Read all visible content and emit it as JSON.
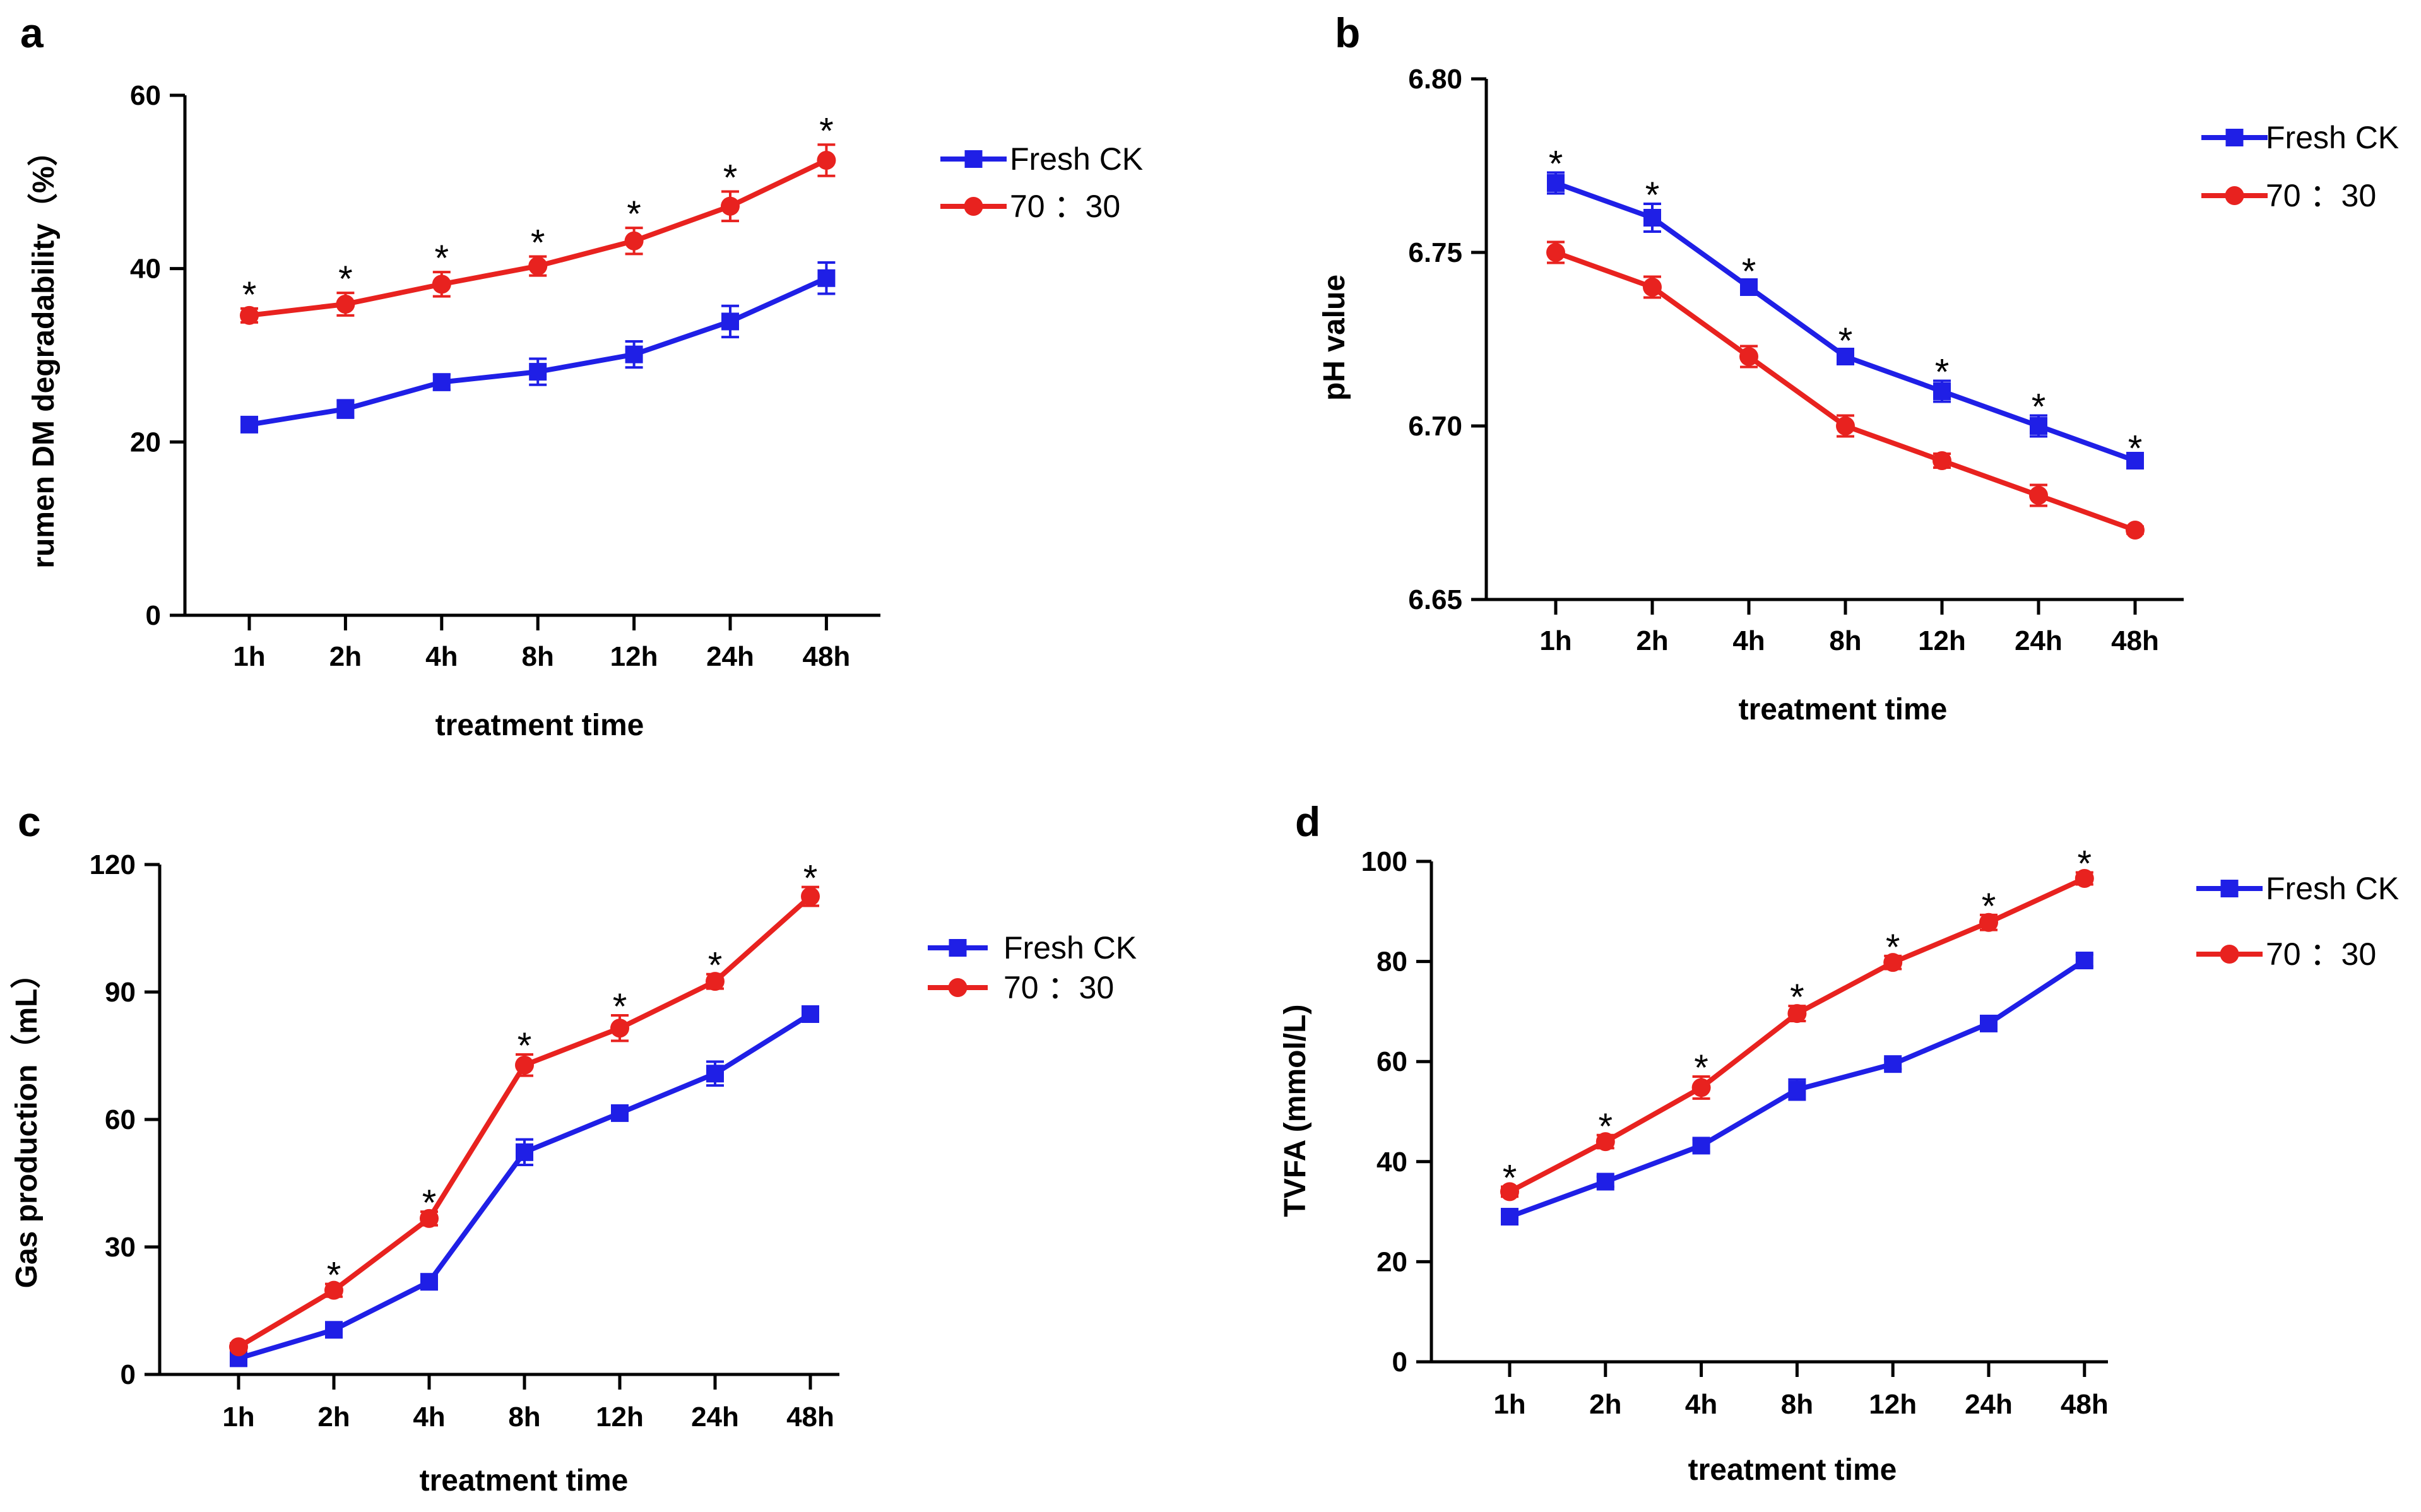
{
  "colors": {
    "fresh_ck": "#1f1fe6",
    "ratio": "#e8221f",
    "axis": "#000000"
  },
  "chart_data": [
    {
      "panel": "a",
      "type": "line",
      "title": "",
      "xlabel": "treatment time",
      "ylabel": "rumen DM degradability（%）",
      "categories": [
        "1h",
        "2h",
        "4h",
        "8h",
        "12h",
        "24h",
        "48h"
      ],
      "ylim": [
        0,
        60
      ],
      "yticks": [
        "0",
        "20",
        "40",
        "60"
      ],
      "legend_position": "right",
      "series": [
        {
          "name": "Fresh CK",
          "marker": "square",
          "color_key": "fresh_ck",
          "values": [
            22.0,
            23.8,
            26.9,
            28.1,
            30.1,
            33.9,
            38.9
          ],
          "errors": [
            0.6,
            1.0,
            0.9,
            1.5,
            1.5,
            1.8,
            1.8
          ]
        },
        {
          "name": "70 ：30",
          "marker": "circle",
          "color_key": "ratio",
          "values": [
            34.6,
            35.9,
            38.2,
            40.3,
            43.2,
            47.2,
            52.5
          ],
          "errors": [
            0.8,
            1.3,
            1.4,
            1.1,
            1.5,
            1.7,
            1.8
          ]
        }
      ],
      "significance": [
        "*",
        "*",
        "*",
        "*",
        "*",
        "*",
        "*"
      ]
    },
    {
      "panel": "b",
      "type": "line",
      "title": "",
      "xlabel": "treatment time",
      "ylabel": "pH value",
      "categories": [
        "1h",
        "2h",
        "4h",
        "8h",
        "12h",
        "24h",
        "48h"
      ],
      "ylim": [
        6.65,
        6.8
      ],
      "yticks": [
        "6.65",
        "6.70",
        "6.75",
        "6.80"
      ],
      "legend_position": "right",
      "series": [
        {
          "name": "Fresh CK",
          "marker": "square",
          "color_key": "fresh_ck",
          "values": [
            6.77,
            6.76,
            6.74,
            6.72,
            6.71,
            6.7,
            6.69
          ],
          "errors": [
            0.003,
            0.004,
            0.002,
            0.002,
            0.003,
            0.003,
            0.001
          ]
        },
        {
          "name": "70 ：30",
          "marker": "circle",
          "color_key": "ratio",
          "values": [
            6.75,
            6.74,
            6.72,
            6.7,
            6.69,
            6.68,
            6.67
          ],
          "errors": [
            0.003,
            0.003,
            0.003,
            0.003,
            0.002,
            0.003,
            0.001
          ]
        }
      ],
      "significance": [
        "*",
        "*",
        "*",
        "*",
        "*",
        "*",
        "*"
      ]
    },
    {
      "panel": "c",
      "type": "line",
      "title": "",
      "xlabel": "treatment time",
      "ylabel": "Gas production（mL）",
      "categories": [
        "1h",
        "2h",
        "4h",
        "8h",
        "12h",
        "24h",
        "48h"
      ],
      "ylim": [
        0,
        120
      ],
      "yticks": [
        "0",
        "30",
        "60",
        "90",
        "120"
      ],
      "legend_position": "right",
      "series": [
        {
          "name": "Fresh CK",
          "marker": "square",
          "color_key": "fresh_ck",
          "values": [
            3.8,
            10.5,
            21.8,
            52.3,
            61.5,
            70.8,
            84.8
          ],
          "errors": [
            0.6,
            1.2,
            1.5,
            3.0,
            1.7,
            2.8,
            1.6
          ]
        },
        {
          "name": "70 ：30",
          "marker": "circle",
          "color_key": "ratio",
          "values": [
            6.5,
            19.8,
            36.7,
            72.8,
            81.5,
            92.5,
            112.5
          ],
          "errors": [
            0.8,
            1.5,
            1.6,
            2.5,
            3.0,
            1.7,
            2.2
          ]
        }
      ],
      "significance": [
        "",
        "*",
        "*",
        "*",
        "*",
        "*",
        "*"
      ]
    },
    {
      "panel": "d",
      "type": "line",
      "title": "",
      "xlabel": "treatment time",
      "ylabel": "TVFA (mmol/L)",
      "categories": [
        "1h",
        "2h",
        "4h",
        "8h",
        "12h",
        "24h",
        "48h"
      ],
      "ylim": [
        0,
        100
      ],
      "yticks": [
        "0",
        "20",
        "40",
        "60",
        "80",
        "100"
      ],
      "legend_position": "right",
      "series": [
        {
          "name": "Fresh CK",
          "marker": "square",
          "color_key": "fresh_ck",
          "values": [
            29.0,
            36.0,
            43.2,
            54.4,
            59.5,
            67.6,
            80.2
          ],
          "errors": [
            1.0,
            1.0,
            1.2,
            2.0,
            1.0,
            1.3,
            1.2
          ]
        },
        {
          "name": "70 ：30",
          "marker": "circle",
          "color_key": "ratio",
          "values": [
            34.0,
            44.0,
            54.8,
            69.6,
            79.8,
            87.8,
            96.6
          ],
          "errors": [
            1.0,
            1.3,
            2.2,
            1.5,
            1.3,
            1.5,
            1.2
          ]
        }
      ],
      "significance": [
        "*",
        "*",
        "*",
        "*",
        "*",
        "*",
        "*"
      ]
    }
  ]
}
